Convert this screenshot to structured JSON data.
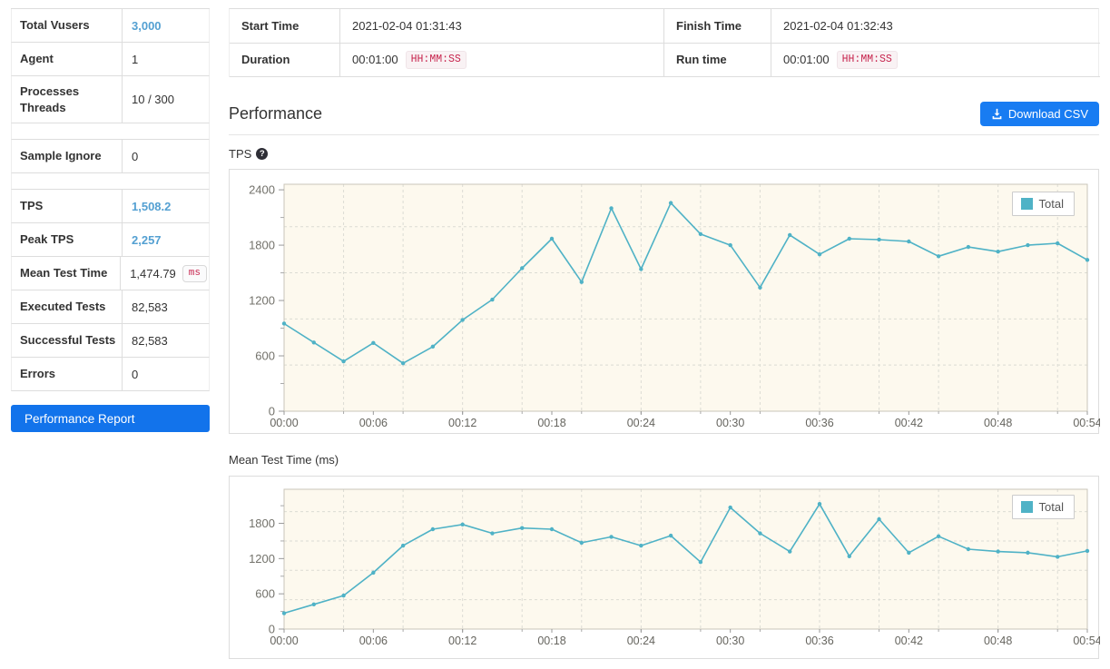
{
  "sidebar": {
    "rows": [
      {
        "label": "Total Vusers",
        "value": "3,000"
      },
      {
        "label": "Agent",
        "value": "1"
      },
      {
        "label": "Processes Threads",
        "value": "10 / 300"
      },
      {
        "spacer": true
      },
      {
        "label": "Sample Ignore",
        "value": "0"
      },
      {
        "spacer": true
      },
      {
        "label": "TPS",
        "value": "1,508.2"
      },
      {
        "label": "Peak TPS",
        "value": "2,257"
      },
      {
        "label": "Mean Test Time",
        "value": "1,474.79",
        "badge": "ms"
      },
      {
        "label": "Executed Tests",
        "value": "82,583"
      },
      {
        "label": "Successful Tests",
        "value": "82,583"
      },
      {
        "label": "Errors",
        "value": "0"
      }
    ],
    "report_button": "Performance Report"
  },
  "info_table": {
    "rows": [
      [
        {
          "label": "Start Time",
          "value": "2021-02-04 01:31:43"
        },
        {
          "label": "Finish Time",
          "value": "2021-02-04 01:32:43"
        }
      ],
      [
        {
          "label": "Duration",
          "value": "00:01:00",
          "badge": "HH:MM:SS"
        },
        {
          "label": "Run time",
          "value": "00:01:00",
          "badge": "HH:MM:SS"
        }
      ]
    ]
  },
  "performance": {
    "title": "Performance",
    "download_button": "Download CSV"
  },
  "icons": {
    "help_glyph": "?"
  },
  "colors": {
    "accent_blue_value": "#54a0d2",
    "primary_button": "#1273eb",
    "download_button": "#187cf2",
    "badge_red": "#c7254e",
    "chart_line": "#4fb2c6",
    "chart_plot_bg": "#fdf9ee"
  },
  "chart_data": [
    {
      "type": "line",
      "title": "TPS",
      "x_minutes": [
        0,
        2,
        4,
        6,
        8,
        10,
        12,
        14,
        16,
        18,
        20,
        22,
        24,
        26,
        28,
        30,
        32,
        34,
        36,
        38,
        40,
        42,
        44,
        46,
        48,
        50,
        52,
        54
      ],
      "series": [
        {
          "name": "Total",
          "values": [
            950,
            745,
            540,
            740,
            520,
            700,
            990,
            1210,
            1550,
            1870,
            1400,
            2200,
            1540,
            2257,
            1920,
            1800,
            1340,
            1910,
            1700,
            1870,
            1860,
            1840,
            1680,
            1780,
            1730,
            1800,
            1820,
            1640
          ]
        }
      ],
      "ylim": [
        0,
        2460
      ],
      "yticks": [
        0,
        600,
        1200,
        1800,
        2400
      ],
      "ytick_minor": [
        300,
        900,
        1500,
        2100
      ],
      "grid_y": [
        500,
        1000,
        1500,
        2000
      ],
      "xtick_minutes": [
        0,
        6,
        12,
        18,
        24,
        30,
        36,
        42,
        48,
        54
      ],
      "xtick_labels": [
        "00:00",
        "00:06",
        "00:12",
        "00:18",
        "00:24",
        "00:30",
        "00:36",
        "00:42",
        "00:48",
        "00:54"
      ],
      "grid_x_minutes": [
        4,
        8,
        12,
        16,
        20,
        24,
        28,
        32,
        36,
        40,
        44,
        48,
        52
      ],
      "legend_position": "top-right",
      "line_color": "#4fb2c6",
      "plot_bg": "#fdf9ee",
      "grid": true
    },
    {
      "type": "line",
      "title": "Mean Test Time (ms)",
      "x_minutes": [
        0,
        2,
        4,
        6,
        8,
        10,
        12,
        14,
        16,
        18,
        20,
        22,
        24,
        26,
        28,
        30,
        32,
        34,
        36,
        38,
        40,
        42,
        44,
        46,
        48,
        50,
        52,
        54
      ],
      "series": [
        {
          "name": "Total",
          "values": [
            270,
            420,
            570,
            960,
            1420,
            1700,
            1780,
            1630,
            1720,
            1700,
            1470,
            1570,
            1420,
            1590,
            1140,
            2070,
            1630,
            1320,
            2130,
            1240,
            1870,
            1300,
            1580,
            1360,
            1320,
            1300,
            1230,
            1330
          ]
        }
      ],
      "ylim": [
        0,
        2380
      ],
      "yticks": [
        0,
        600,
        1200,
        1800
      ],
      "ytick_minor": [
        300,
        900,
        1500,
        2100
      ],
      "grid_y": [
        500,
        1000,
        1500,
        2000
      ],
      "xtick_minutes": [
        0,
        6,
        12,
        18,
        24,
        30,
        36,
        42,
        48,
        54
      ],
      "xtick_labels": [
        "00:00",
        "00:06",
        "00:12",
        "00:18",
        "00:24",
        "00:30",
        "00:36",
        "00:42",
        "00:48",
        "00:54"
      ],
      "grid_x_minutes": [
        4,
        8,
        12,
        16,
        20,
        24,
        28,
        32,
        36,
        40,
        44,
        48,
        52
      ],
      "legend_position": "top-right",
      "line_color": "#4fb2c6",
      "plot_bg": "#fdf9ee",
      "grid": true
    }
  ]
}
